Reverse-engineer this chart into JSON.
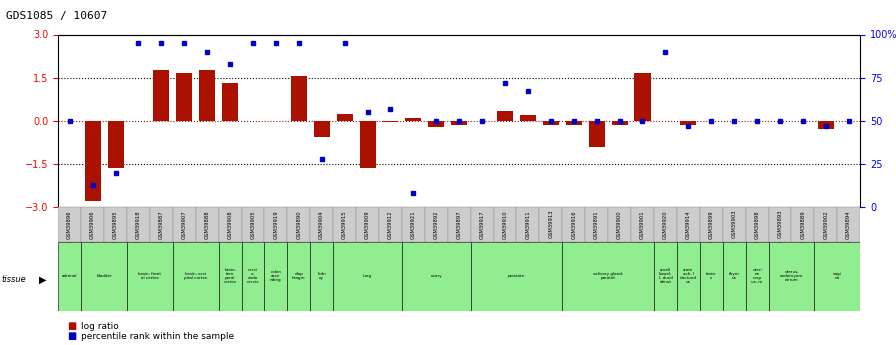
{
  "title": "GDS1085 / 10607",
  "samples": [
    "GSM39896",
    "GSM39906",
    "GSM39895",
    "GSM39918",
    "GSM39887",
    "GSM39907",
    "GSM39888",
    "GSM39908",
    "GSM39905",
    "GSM39919",
    "GSM39890",
    "GSM39904",
    "GSM39915",
    "GSM39909",
    "GSM39912",
    "GSM39921",
    "GSM39892",
    "GSM39897",
    "GSM39917",
    "GSM39910",
    "GSM39911",
    "GSM39913",
    "GSM39916",
    "GSM39891",
    "GSM39900",
    "GSM39901",
    "GSM39920",
    "GSM39914",
    "GSM39899",
    "GSM39903",
    "GSM39898",
    "GSM39893",
    "GSM39889",
    "GSM39902",
    "GSM39894"
  ],
  "log_ratio": [
    0.0,
    -2.8,
    -1.65,
    0.0,
    1.75,
    1.65,
    1.75,
    1.3,
    0.0,
    0.0,
    1.55,
    -0.55,
    0.25,
    -1.65,
    -0.05,
    0.1,
    -0.2,
    -0.15,
    0.0,
    0.35,
    0.2,
    -0.15,
    -0.15,
    -0.9,
    -0.15,
    1.65,
    0.0,
    -0.15,
    0.0,
    0.0,
    0.0,
    0.0,
    0.0,
    -0.3,
    0.0
  ],
  "percentile": [
    0.5,
    0.13,
    0.2,
    0.95,
    0.95,
    0.95,
    0.9,
    0.83,
    0.95,
    0.95,
    0.95,
    0.28,
    0.95,
    0.55,
    0.57,
    0.08,
    0.5,
    0.5,
    0.5,
    0.72,
    0.67,
    0.5,
    0.5,
    0.5,
    0.5,
    0.5,
    0.9,
    0.47,
    0.5,
    0.5,
    0.5,
    0.5,
    0.5,
    0.47,
    0.5
  ],
  "tissue_groups": [
    {
      "label": "adrenal",
      "start": 0,
      "end": 1
    },
    {
      "label": "bladder",
      "start": 1,
      "end": 3
    },
    {
      "label": "brain, front\nal cortex",
      "start": 3,
      "end": 5
    },
    {
      "label": "brain, occi\npital cortex",
      "start": 5,
      "end": 7
    },
    {
      "label": "brain,\ntem\nporal\ncortex",
      "start": 7,
      "end": 8
    },
    {
      "label": "cervi\nx,\nendo\ncervix",
      "start": 8,
      "end": 9
    },
    {
      "label": "colon\nasce\nnding",
      "start": 9,
      "end": 10
    },
    {
      "label": "diap\nhragm",
      "start": 10,
      "end": 11
    },
    {
      "label": "kidn\ney",
      "start": 11,
      "end": 12
    },
    {
      "label": "lung",
      "start": 12,
      "end": 15
    },
    {
      "label": "ovary",
      "start": 15,
      "end": 18
    },
    {
      "label": "prostate",
      "start": 18,
      "end": 22
    },
    {
      "label": "salivary gland,\nparotid",
      "start": 22,
      "end": 26
    },
    {
      "label": "small\nbowel,\nI, ducd\ndenut",
      "start": 26,
      "end": 27
    },
    {
      "label": "stom\nach, I\nductund\nus",
      "start": 27,
      "end": 28
    },
    {
      "label": "teste\ns",
      "start": 28,
      "end": 29
    },
    {
      "label": "thym\nus",
      "start": 29,
      "end": 30
    },
    {
      "label": "uteri\nne\ncorp\nus, m",
      "start": 30,
      "end": 31
    },
    {
      "label": "uterus,\nendomyom\netrium",
      "start": 31,
      "end": 33
    },
    {
      "label": "vagi\nna",
      "start": 33,
      "end": 35
    }
  ],
  "bar_color": "#aa1100",
  "dot_color": "#0000cc",
  "ylim_left": [
    -3,
    3
  ],
  "yticks_left": [
    -3,
    -1.5,
    0,
    1.5,
    3
  ],
  "ytick_labels_right": [
    "0",
    "25",
    "50",
    "75",
    "100%"
  ],
  "tissue_color": "#90ee90",
  "xticklabel_bg": "#d0d0d0",
  "bg_color": "#ffffff"
}
